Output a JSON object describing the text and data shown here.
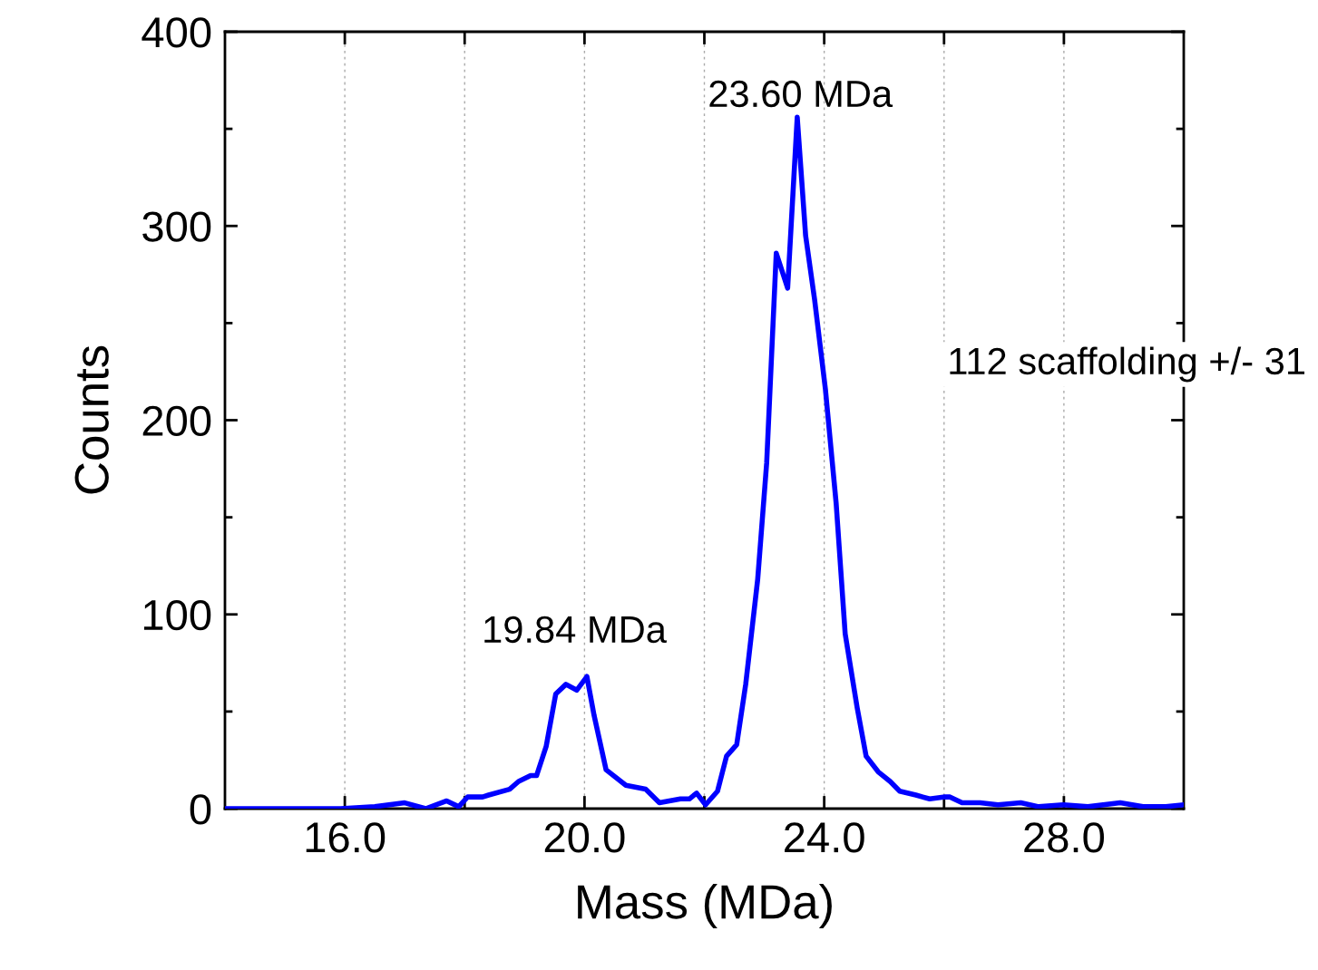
{
  "chart_data": {
    "type": "line",
    "xlabel": "Mass (MDa)",
    "ylabel": "Counts",
    "x": [
      14,
      15.93,
      16.5,
      17.0,
      17.35,
      17.7,
      17.9,
      18.05,
      18.3,
      18.4,
      18.75,
      18.9,
      19.1,
      19.2,
      19.36,
      19.52,
      19.69,
      19.87,
      20.04,
      20.16,
      20.36,
      20.69,
      21.02,
      21.25,
      21.6,
      21.75,
      21.87,
      22.02,
      22.22,
      22.37,
      22.54,
      22.69,
      22.89,
      23.04,
      23.2,
      23.39,
      23.55,
      23.69,
      23.84,
      24.02,
      24.2,
      24.35,
      24.55,
      24.7,
      24.9,
      25.1,
      25.26,
      25.53,
      25.76,
      25.99,
      26.1,
      26.3,
      26.6,
      26.9,
      27.28,
      27.58,
      27.99,
      28.4,
      28.94,
      29.32,
      29.7,
      30
    ],
    "series": [
      {
        "color": "#0000ff",
        "values": [
          0,
          0,
          1,
          3,
          0,
          4,
          1,
          6,
          6,
          7,
          10,
          14,
          17,
          17,
          32,
          59,
          64,
          61,
          68,
          48,
          20,
          12,
          10,
          3,
          5,
          5,
          8,
          2,
          9,
          27,
          33,
          64,
          118,
          178,
          286,
          268,
          356,
          295,
          262,
          216,
          157,
          90,
          52,
          27,
          19,
          14,
          9,
          7,
          5,
          6,
          6,
          3,
          3,
          2,
          3,
          1,
          2,
          1,
          3,
          1,
          1,
          2
        ]
      }
    ],
    "xlim": [
      14,
      30
    ],
    "ylim": [
      0,
      400
    ],
    "xticks": [
      {
        "value": 16,
        "label": "16.0"
      },
      {
        "value": 18,
        "label": null
      },
      {
        "value": 20,
        "label": "20.0"
      },
      {
        "value": 22,
        "label": null
      },
      {
        "value": 24,
        "label": "24.0"
      },
      {
        "value": 26,
        "label": null
      },
      {
        "value": 28,
        "label": "28.0"
      }
    ],
    "yticks": [
      0,
      {
        "value": 50,
        "label": null
      },
      100,
      {
        "value": 150,
        "label": null
      },
      200,
      {
        "value": 250,
        "label": null
      },
      300,
      {
        "value": 350,
        "label": null
      },
      400
    ],
    "grid": "x",
    "marker": "none",
    "line_style": "solid",
    "annotations": [
      {
        "text": "23.60 MDa",
        "x": 23.6,
        "y": 356
      },
      "19.84 MDa",
      "112 scaffolding +/- 31"
    ]
  }
}
